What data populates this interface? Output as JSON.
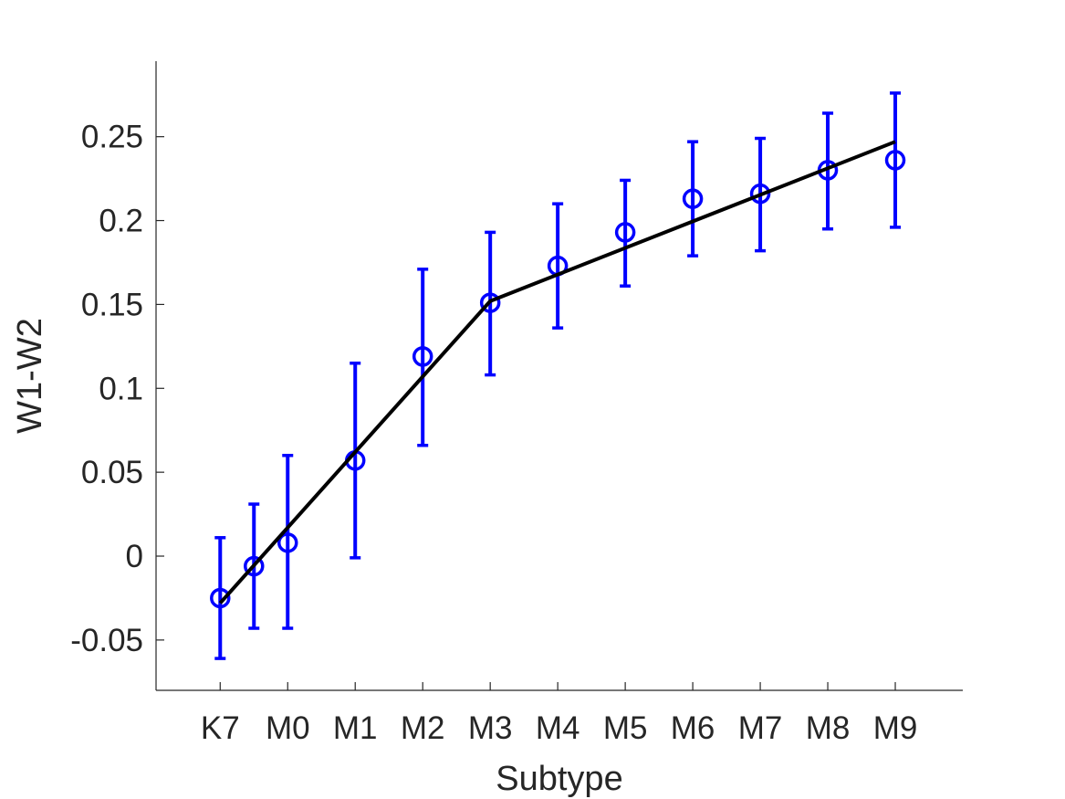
{
  "chart_data": {
    "type": "scatter",
    "title": "",
    "xlabel": "Subtype",
    "ylabel": "W1-W2",
    "ylim": [
      -0.08,
      0.295
    ],
    "y_ticks": [
      -0.05,
      0,
      0.05,
      0.1,
      0.15,
      0.2,
      0.25
    ],
    "y_tick_labels": [
      "-0.05",
      "0",
      "0.05",
      "0.1",
      "0.15",
      "0.2",
      "0.25"
    ],
    "xlim": [
      -0.95,
      11
    ],
    "x_ticks": [
      0,
      1,
      2,
      3,
      4,
      5,
      6,
      7,
      8,
      9,
      10
    ],
    "x_tick_labels": [
      "K7",
      "M0",
      "M1",
      "M2",
      "M3",
      "M4",
      "M5",
      "M6",
      "M7",
      "M8",
      "M9"
    ],
    "grid": false,
    "series": [
      {
        "type": "errorbar",
        "marker": "circle",
        "color": "#0000ff",
        "points": [
          {
            "x": 0,
            "y": -0.025,
            "lower": -0.061,
            "upper": 0.011
          },
          {
            "x": 0.5,
            "y": -0.006,
            "lower": -0.043,
            "upper": 0.031
          },
          {
            "x": 1,
            "y": 0.008,
            "lower": -0.043,
            "upper": 0.06
          },
          {
            "x": 2,
            "y": 0.057,
            "lower": -0.001,
            "upper": 0.115
          },
          {
            "x": 3,
            "y": 0.119,
            "lower": 0.066,
            "upper": 0.171
          },
          {
            "x": 4,
            "y": 0.151,
            "lower": 0.108,
            "upper": 0.193
          },
          {
            "x": 5,
            "y": 0.173,
            "lower": 0.136,
            "upper": 0.21
          },
          {
            "x": 6,
            "y": 0.193,
            "lower": 0.161,
            "upper": 0.224
          },
          {
            "x": 7,
            "y": 0.213,
            "lower": 0.179,
            "upper": 0.247
          },
          {
            "x": 8,
            "y": 0.216,
            "lower": 0.182,
            "upper": 0.249
          },
          {
            "x": 9,
            "y": 0.23,
            "lower": 0.195,
            "upper": 0.264
          },
          {
            "x": 10,
            "y": 0.236,
            "lower": 0.196,
            "upper": 0.276
          }
        ]
      },
      {
        "type": "line",
        "color": "#000000",
        "points": [
          {
            "x": 0,
            "y": -0.028
          },
          {
            "x": 4,
            "y": 0.152
          },
          {
            "x": 10,
            "y": 0.247
          }
        ]
      }
    ]
  }
}
